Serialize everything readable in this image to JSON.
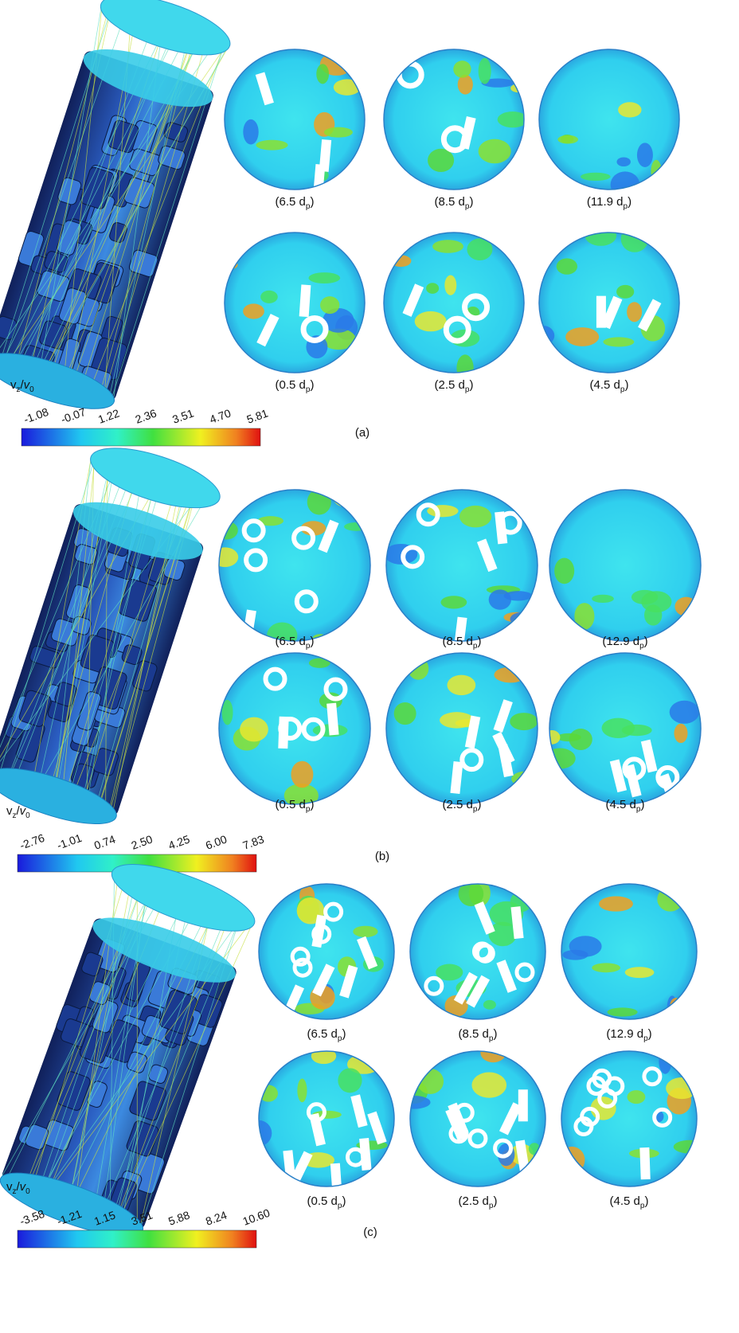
{
  "panels": [
    {
      "label": "(a)",
      "colorbar": {
        "title": [
          "v",
          "z",
          "/",
          "v",
          "0"
        ],
        "ticks": [
          "-1.08",
          "-0.07",
          "1.22",
          "2.36",
          "3.51",
          "4.70",
          "5.81"
        ]
      },
      "slices": [
        [
          "(6.5 d",
          "p",
          ")"
        ],
        [
          "(8.5 d",
          "p",
          ")"
        ],
        [
          "(11.9 d",
          "p",
          ")"
        ],
        [
          "(0.5 d",
          "p",
          ")"
        ],
        [
          "(2.5 d",
          "p",
          ")"
        ],
        [
          "(4.5 d",
          "p",
          ")"
        ]
      ]
    },
    {
      "label": "(b)",
      "colorbar": {
        "title": [
          "v",
          "z",
          "/",
          "v",
          "0"
        ],
        "ticks": [
          "-2.76",
          "-1.01",
          "0.74",
          "2.50",
          "4.25",
          "6.00",
          "7.83"
        ]
      },
      "slices": [
        [
          "(6.5 d",
          "p",
          ")"
        ],
        [
          "(8.5 d",
          "p",
          ")"
        ],
        [
          "(12.9 d",
          "p",
          ")"
        ],
        [
          "(0.5 d",
          "p",
          ")"
        ],
        [
          "(2.5 d",
          "p",
          ")"
        ],
        [
          "(4.5 d",
          "p",
          ")"
        ]
      ]
    },
    {
      "label": "(c)",
      "colorbar": {
        "title": [
          "v",
          "z",
          "/",
          "v",
          "0"
        ],
        "ticks": [
          "-3.58",
          "-1.21",
          "1.15",
          "3.51",
          "5.88",
          "8.24",
          "10.60"
        ]
      },
      "slices": [
        [
          "(6.5 d",
          "p",
          ")"
        ],
        [
          "(8.5 d",
          "p",
          ")"
        ],
        [
          "(12.9 d",
          "p",
          ")"
        ],
        [
          "(0.5 d",
          "p",
          ")"
        ],
        [
          "(2.5 d",
          "p",
          ")"
        ],
        [
          "(4.5 d",
          "p",
          ")"
        ]
      ]
    }
  ]
}
